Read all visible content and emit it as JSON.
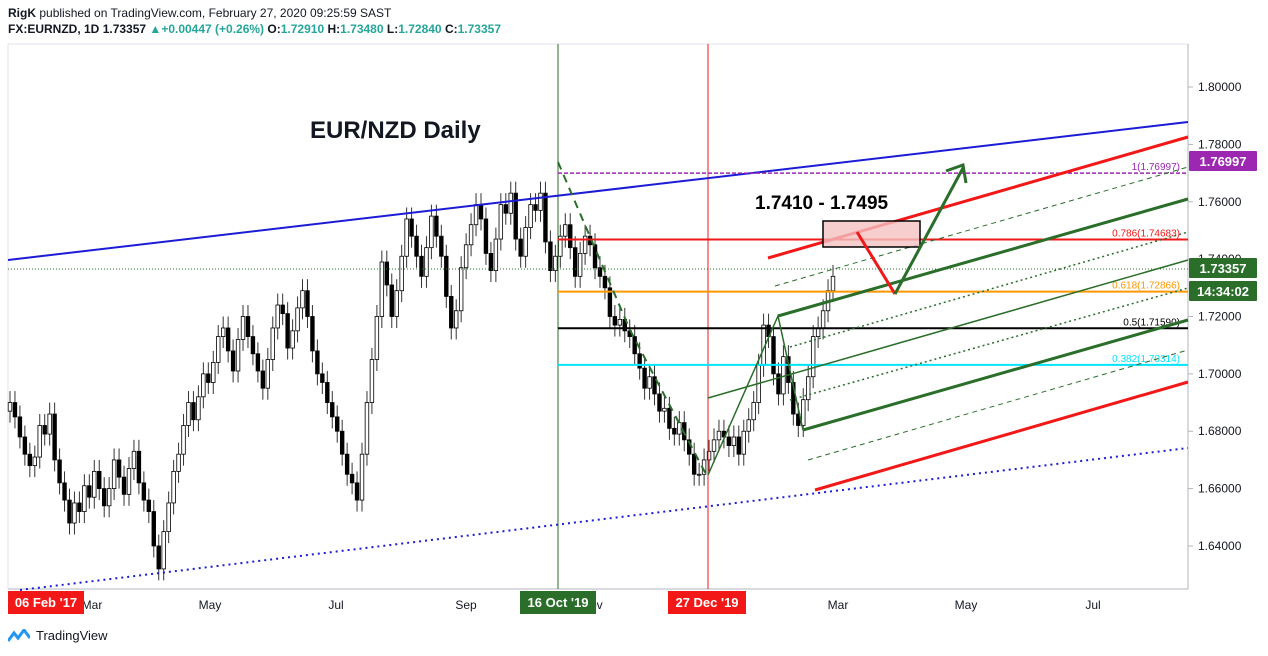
{
  "header": {
    "author": "RigK",
    "published_text": "published on TradingView.com, February 27, 2020 09:25:59 SAST",
    "symbol": "FX:EURNZD, 1D",
    "last": "1.73357",
    "change": "+0.00447 (+0.26%)",
    "o_label": "O:",
    "o_val": "1.72910",
    "h_label": "H:",
    "h_val": "1.73480",
    "l_label": "L:",
    "l_val": "1.72840",
    "c_label": "C:",
    "c_val": "1.73357"
  },
  "footer": {
    "brand": "TradingView",
    "icon": "tradingview-logo-icon"
  },
  "colors": {
    "up": "#26a69a",
    "blue": "#1c1cd6",
    "red": "#f21818",
    "green": "#2a6e2a",
    "orange": "#ff9800",
    "cyan": "#00e5ff",
    "purple": "#9c27b0",
    "black": "#000000"
  },
  "chart_data": {
    "type": "candlestick",
    "title": "EUR/NZD Daily",
    "ylim": [
      1.625,
      1.815
    ],
    "y_ticks": [
      "1.80000",
      "1.78000",
      "1.76000",
      "1.74000",
      "1.72000",
      "1.70000",
      "1.68000",
      "1.66000",
      "1.64000"
    ],
    "x_ticks": [
      "Mar",
      "May",
      "Jul",
      "Sep",
      "Nov",
      "Mar",
      "May",
      "Jul"
    ],
    "x_markers": [
      {
        "label": "06 Feb '17",
        "color": "#f21818"
      },
      {
        "label": "16 Oct '19",
        "color": "#2a6e2a"
      },
      {
        "label": "27 Dec '19",
        "color": "#f21818"
      }
    ],
    "price_badges": [
      {
        "label": "1.76997",
        "color": "#9c27b0"
      },
      {
        "label": "1.73357",
        "color": "#2a6e2a"
      },
      {
        "label": "14:34:02",
        "color": "#2a6e2a"
      }
    ],
    "fib_levels": [
      {
        "label": "1(1.76997)",
        "value": 1.76997,
        "color": "#9c27b0"
      },
      {
        "label": "0.786(1.74683)",
        "value": 1.74683,
        "color": "#f21818"
      },
      {
        "label": "0.618(1.72866)",
        "value": 1.72866,
        "color": "#ff9800"
      },
      {
        "label": "0.5(1.71590)",
        "value": 1.7159,
        "color": "#000000"
      },
      {
        "label": "0.382(1.70314)",
        "value": 1.70314,
        "color": "#00e5ff"
      }
    ],
    "target_zone": {
      "label": "1.7410 - 1.7495",
      "low": 1.741,
      "high": 1.7495
    },
    "current_price": 1.73357,
    "candles": [
      1.69,
      1.685,
      1.678,
      1.672,
      1.668,
      1.671,
      1.682,
      1.679,
      1.686,
      1.67,
      1.662,
      1.656,
      1.648,
      1.655,
      1.652,
      1.661,
      1.657,
      1.666,
      1.66,
      1.654,
      1.66,
      1.67,
      1.664,
      1.658,
      1.667,
      1.673,
      1.662,
      1.656,
      1.652,
      1.64,
      1.632,
      1.645,
      1.655,
      1.666,
      1.672,
      1.682,
      1.69,
      1.684,
      1.692,
      1.7,
      1.697,
      1.704,
      1.713,
      1.716,
      1.708,
      1.701,
      1.712,
      1.72,
      1.713,
      1.707,
      1.701,
      1.695,
      1.705,
      1.716,
      1.724,
      1.721,
      1.709,
      1.715,
      1.723,
      1.729,
      1.72,
      1.708,
      1.7,
      1.697,
      1.69,
      1.685,
      1.68,
      1.672,
      1.665,
      1.662,
      1.656,
      1.672,
      1.69,
      1.705,
      1.72,
      1.739,
      1.731,
      1.72,
      1.729,
      1.741,
      1.754,
      1.748,
      1.741,
      1.734,
      1.744,
      1.755,
      1.748,
      1.741,
      1.727,
      1.716,
      1.722,
      1.737,
      1.745,
      1.752,
      1.759,
      1.754,
      1.742,
      1.736,
      1.747,
      1.759,
      1.756,
      1.763,
      1.747,
      1.741,
      1.751,
      1.759,
      1.757,
      1.763,
      1.746,
      1.736,
      1.741,
      1.748,
      1.752,
      1.744,
      1.734,
      1.742,
      1.748,
      1.745,
      1.737,
      1.734,
      1.73,
      1.72,
      1.717,
      1.719,
      1.715,
      1.713,
      1.707,
      1.702,
      1.695,
      1.699,
      1.693,
      1.687,
      1.688,
      1.681,
      1.679,
      1.683,
      1.677,
      1.672,
      1.665,
      1.665,
      1.67,
      1.673,
      1.677,
      1.68,
      1.678,
      1.675,
      1.678,
      1.672,
      1.68,
      1.684,
      1.69,
      1.703,
      1.717,
      1.713,
      1.7,
      1.693,
      1.706,
      1.697,
      1.686,
      1.682,
      1.691,
      1.699,
      1.713,
      1.716,
      1.722,
      1.729,
      1.734
    ]
  }
}
